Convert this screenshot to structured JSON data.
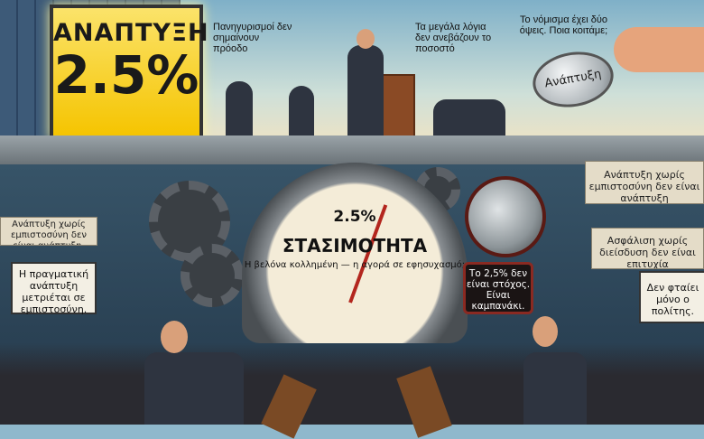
{
  "billboard": {
    "title": "ΑΝΑΠΤΥΞΗ",
    "value": "2.5%"
  },
  "captions": {
    "celebrations": "Πανηγυρισμοί δεν σημαίνουν πρόοδο",
    "big_words": "Τα μεγάλα λόγια δεν ανεβάζουν το ποσοστό",
    "coin_question": "Το νόμισμα έχει δύο όψεις. Ποια κοιτάμε;"
  },
  "coin": {
    "label": "Ανάπτυξη"
  },
  "gauge": {
    "value": "2.5%",
    "title": "ΣΤΑΣΙΜΟΤΗΤΑ",
    "subtitle": "Η βελόνα κολλημένη — η αγορά σε εφησυχασμό;"
  },
  "alarm_box": {
    "text": "Το 2,5% δεν είναι στόχος. Είναι καμπανάκι."
  },
  "banners": {
    "right_top": "Ανάπτυξη χωρίς εμπιστοσύνη δεν είναι ανάπτυξη",
    "right_middle": "Ασφάλιση χωρίς διείσδυση δεν είναι επιτυχία",
    "left_top": "Ανάπτυξη χωρίς εμπιστοσύνη δεν είναι ανάπτυξη."
  },
  "signs": {
    "left": "Η πραγματική ανάπτυξη μετριέται σε εμπιστοσύνη.",
    "right": "Δεν φταίει μόνο ο πολίτης."
  },
  "colors": {
    "billboard": "#f5c400",
    "needle": "#b3261e",
    "alarm_border": "#8a2a22"
  }
}
